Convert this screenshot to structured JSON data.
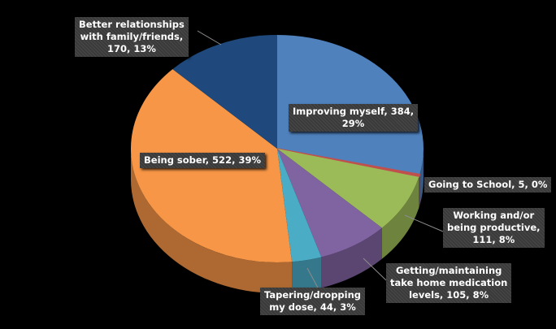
{
  "chart_data": {
    "type": "pie",
    "style": "3d",
    "slices": [
      {
        "name": "Improving myself",
        "value": 384,
        "percent": "29%",
        "label": "Improving myself, 384, 29%",
        "color": "#4f81bd"
      },
      {
        "name": "Going to School",
        "value": 5,
        "percent": "0%",
        "label": "Going to School, 5, 0%",
        "color": "#c0504d"
      },
      {
        "name": "Working and/or being productive",
        "value": 111,
        "percent": "8%",
        "label": "Working and/or being productive, 111, 8%",
        "color": "#9bbb59"
      },
      {
        "name": "Getting/maintaining take home medication levels",
        "value": 105,
        "percent": "8%",
        "label": "Getting/maintaining take home medication levels, 105, 8%",
        "color": "#8064a2"
      },
      {
        "name": "Tapering/dropping my dose",
        "value": 44,
        "percent": "3%",
        "label": "Tapering/dropping my dose, 44, 3%",
        "color": "#4bacc6"
      },
      {
        "name": "Being sober",
        "value": 522,
        "percent": "39%",
        "label": "Being sober, 522, 39%",
        "color": "#f79646"
      },
      {
        "name": "Better relationships with family/friends",
        "value": 170,
        "percent": "13%",
        "label": "Better relationships with family/friends, 170, 13%",
        "color": "#1f497d"
      }
    ]
  },
  "labels": {
    "improving": [
      "Improving myself, 384,",
      "29%"
    ],
    "school": [
      "Going to School, 5, 0%"
    ],
    "working": [
      "Working and/or",
      "being productive,",
      "111, 8%"
    ],
    "medication": [
      "Getting/maintaining",
      "take home medication",
      "levels, 105, 8%"
    ],
    "tapering": [
      "Tapering/dropping",
      "my dose, 44, 3%"
    ],
    "sober": [
      "Being sober, 522, 39%"
    ],
    "relationships": [
      "Better relationships",
      "with family/friends,",
      "170, 13%"
    ]
  }
}
